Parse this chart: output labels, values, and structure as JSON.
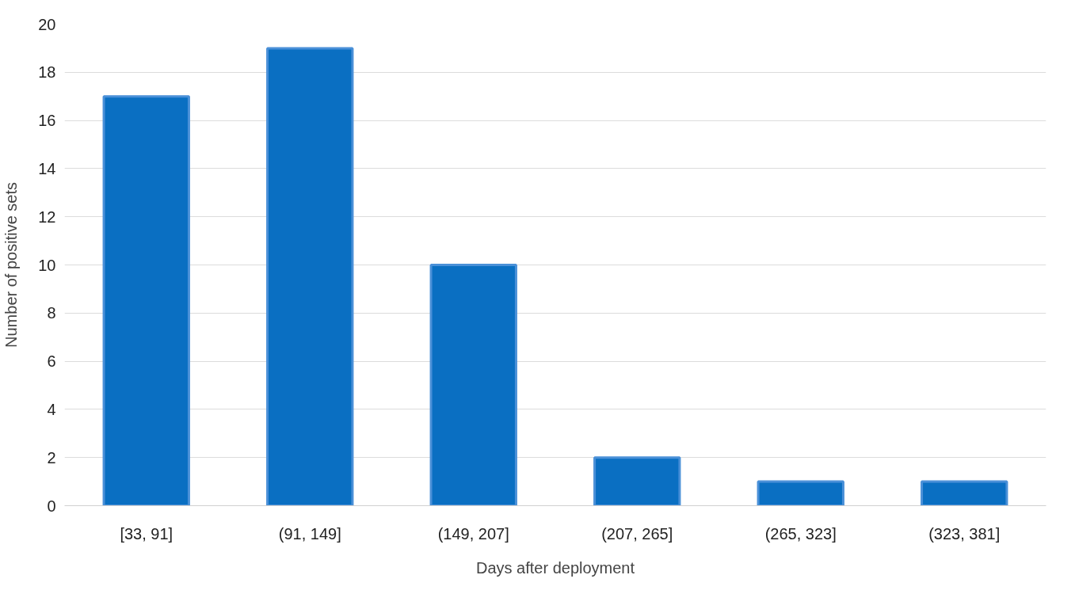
{
  "chart_data": {
    "type": "bar",
    "xlabel": "Days after deployment",
    "ylabel": "Number of positive sets",
    "categories": [
      "[33, 91]",
      "(91, 149]",
      "(149, 207]",
      "(207, 265]",
      "(265, 323]",
      "(323, 381]"
    ],
    "values": [
      17,
      19,
      10,
      2,
      1,
      1
    ],
    "color": "#0a6fc2",
    "ylim": [
      0,
      20
    ],
    "yticks": [
      0,
      2,
      4,
      6,
      8,
      10,
      12,
      14,
      16,
      18,
      20
    ],
    "grid": "y"
  }
}
